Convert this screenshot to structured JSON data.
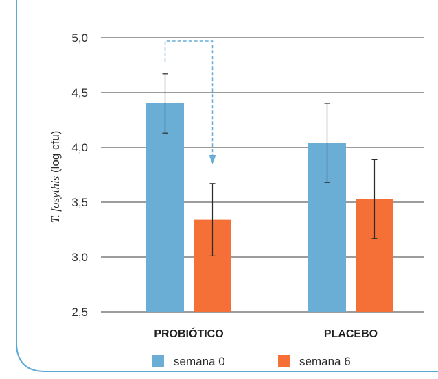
{
  "chart_data": {
    "type": "bar",
    "categories": [
      "PROBIÓTICO",
      "PLACEBO"
    ],
    "series": [
      {
        "name": "semana 0",
        "values": [
          4.4,
          4.04
        ],
        "error": [
          0.27,
          0.36
        ],
        "color": "#6aaed6"
      },
      {
        "name": "semana 6",
        "values": [
          3.34,
          3.53
        ],
        "error": [
          0.33,
          0.36
        ],
        "color": "#f47036"
      }
    ],
    "ylabel": {
      "italic": "T. fosythis",
      "normal": " (log cfu)"
    },
    "xlabel": "",
    "ylim": [
      2.5,
      5.0
    ],
    "yticks": [
      "2,5",
      "3,0",
      "3,5",
      "4,0",
      "4,5",
      "5,0"
    ],
    "grid": true,
    "legend_position": "bottom",
    "annotation": {
      "type": "dashed-arrow",
      "from": {
        "category": "PROBIÓTICO",
        "series": "semana 0"
      },
      "to": {
        "category": "PROBIÓTICO",
        "series": "semana 6"
      },
      "color": "#6aaed6"
    },
    "panel_border_color": "#5aa9d6"
  }
}
